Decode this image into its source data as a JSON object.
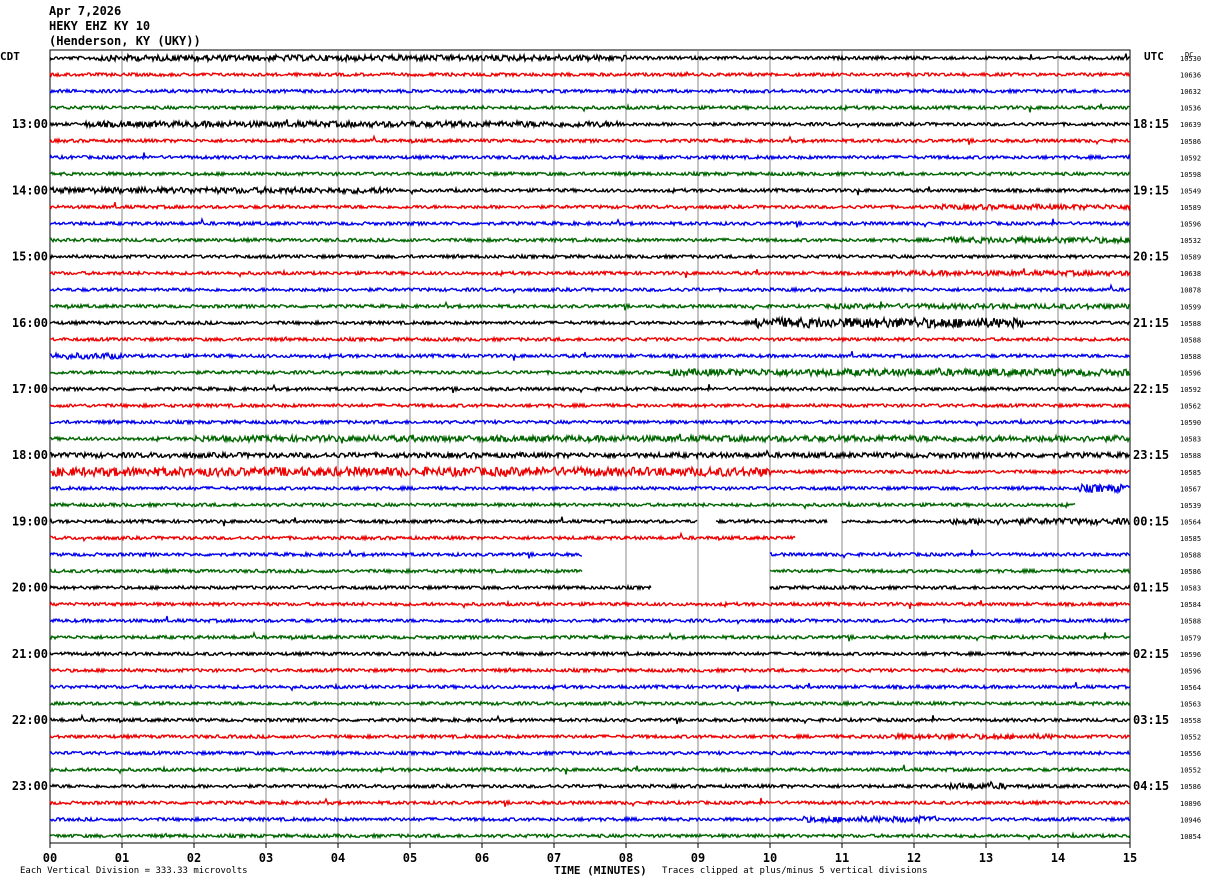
{
  "header": {
    "date": "Apr 7,2026",
    "station": "HEKY EHZ KY 10",
    "location": "(Henderson, KY (UKY))"
  },
  "left_tz": "CDT",
  "right_tz": "UTC",
  "dc_label": "DC",
  "footer": {
    "scale": "Each Vertical Division =  333.33 microvolts",
    "clip": "Traces clipped at plus/minus 5 vertical divisions"
  },
  "chart_data": {
    "type": "line",
    "title": "",
    "xlabel": "TIME (MINUTES)",
    "xlim": [
      0,
      15
    ],
    "x_ticks": [
      "00",
      "01",
      "02",
      "03",
      "04",
      "05",
      "06",
      "07",
      "08",
      "09",
      "10",
      "11",
      "12",
      "13",
      "14",
      "15"
    ],
    "trace_colors": [
      "#000000",
      "#ee0000",
      "#0000ee",
      "#006600"
    ],
    "left_hour_labels": [
      "13:00",
      "14:00",
      "15:00",
      "16:00",
      "17:00",
      "18:00",
      "19:00",
      "20:00",
      "21:00",
      "22:00",
      "23:00"
    ],
    "right_hour_labels": [
      "18:15",
      "19:15",
      "20:15",
      "21:15",
      "22:15",
      "23:15",
      "00:15",
      "01:15",
      "02:15",
      "03:15",
      "04:15"
    ],
    "dc_values": [
      "10530",
      "10636",
      "10632",
      "10536",
      "10639",
      "10586",
      "10592",
      "10598",
      "10549",
      "10589",
      "10596",
      "10532",
      "10589",
      "10638",
      "10878",
      "10599",
      "10588",
      "10588",
      "10588",
      "10596",
      "10592",
      "10562",
      "10590",
      "10583",
      "10588",
      "10585",
      "10567",
      "10539",
      "10564",
      "10585",
      "10588",
      "10586",
      "10583",
      "10584",
      "10588",
      "10579",
      "10596",
      "10596",
      "10564",
      "10563",
      "10558",
      "10552",
      "10556",
      "10552",
      "10586",
      "10896",
      "10946",
      "10854"
    ],
    "gaps": [
      {
        "trace": 28,
        "from_min": 9.0,
        "to_min": 9.25
      },
      {
        "trace": 28,
        "from_min": 10.8,
        "to_min": 11.0
      },
      {
        "trace": 29,
        "from_min": 10.35,
        "to_min": 15.0
      },
      {
        "trace": 30,
        "from_min": 7.4,
        "to_min": 10.0
      },
      {
        "trace": 31,
        "from_min": 7.4,
        "to_min": 10.0
      },
      {
        "trace": 27,
        "from_min": 14.25,
        "to_min": 15.0
      },
      {
        "trace": 32,
        "from_min": 8.35,
        "to_min": 10.0
      }
    ],
    "bursts": [
      {
        "trace": 0,
        "from_min": 0.6,
        "to_min": 8.0,
        "amp": 3
      },
      {
        "trace": 4,
        "from_min": 0.5,
        "to_min": 8.0,
        "amp": 3
      },
      {
        "trace": 8,
        "from_min": 0.0,
        "to_min": 4.8,
        "amp": 3
      },
      {
        "trace": 16,
        "from_min": 9.8,
        "to_min": 13.5,
        "amp": 5
      },
      {
        "trace": 19,
        "from_min": 8.6,
        "to_min": 15.0,
        "amp": 3.5
      },
      {
        "trace": 18,
        "from_min": 0.0,
        "to_min": 1.0,
        "amp": 3
      },
      {
        "trace": 23,
        "from_min": 2.0,
        "to_min": 15.0,
        "amp": 3
      },
      {
        "trace": 25,
        "from_min": 0.0,
        "to_min": 10.0,
        "amp": 4.5
      },
      {
        "trace": 24,
        "from_min": 0.0,
        "to_min": 15.0,
        "amp": 2.5
      },
      {
        "trace": 26,
        "from_min": 14.3,
        "to_min": 15.0,
        "amp": 4
      },
      {
        "trace": 11,
        "from_min": 12.4,
        "to_min": 15.0,
        "amp": 3
      },
      {
        "trace": 9,
        "from_min": 12.3,
        "to_min": 15.0,
        "amp": 2.5
      },
      {
        "trace": 13,
        "from_min": 11.7,
        "to_min": 15.0,
        "amp": 2.5
      },
      {
        "trace": 15,
        "from_min": 10.8,
        "to_min": 15.0,
        "amp": 2.5
      },
      {
        "trace": 28,
        "from_min": 12.5,
        "to_min": 15.0,
        "amp": 3
      },
      {
        "trace": 44,
        "from_min": 12.5,
        "to_min": 13.3,
        "amp": 3
      },
      {
        "trace": 41,
        "from_min": 11.5,
        "to_min": 14.0,
        "amp": 2.5
      },
      {
        "trace": 46,
        "from_min": 10.4,
        "to_min": 12.3,
        "amp": 3
      }
    ]
  }
}
